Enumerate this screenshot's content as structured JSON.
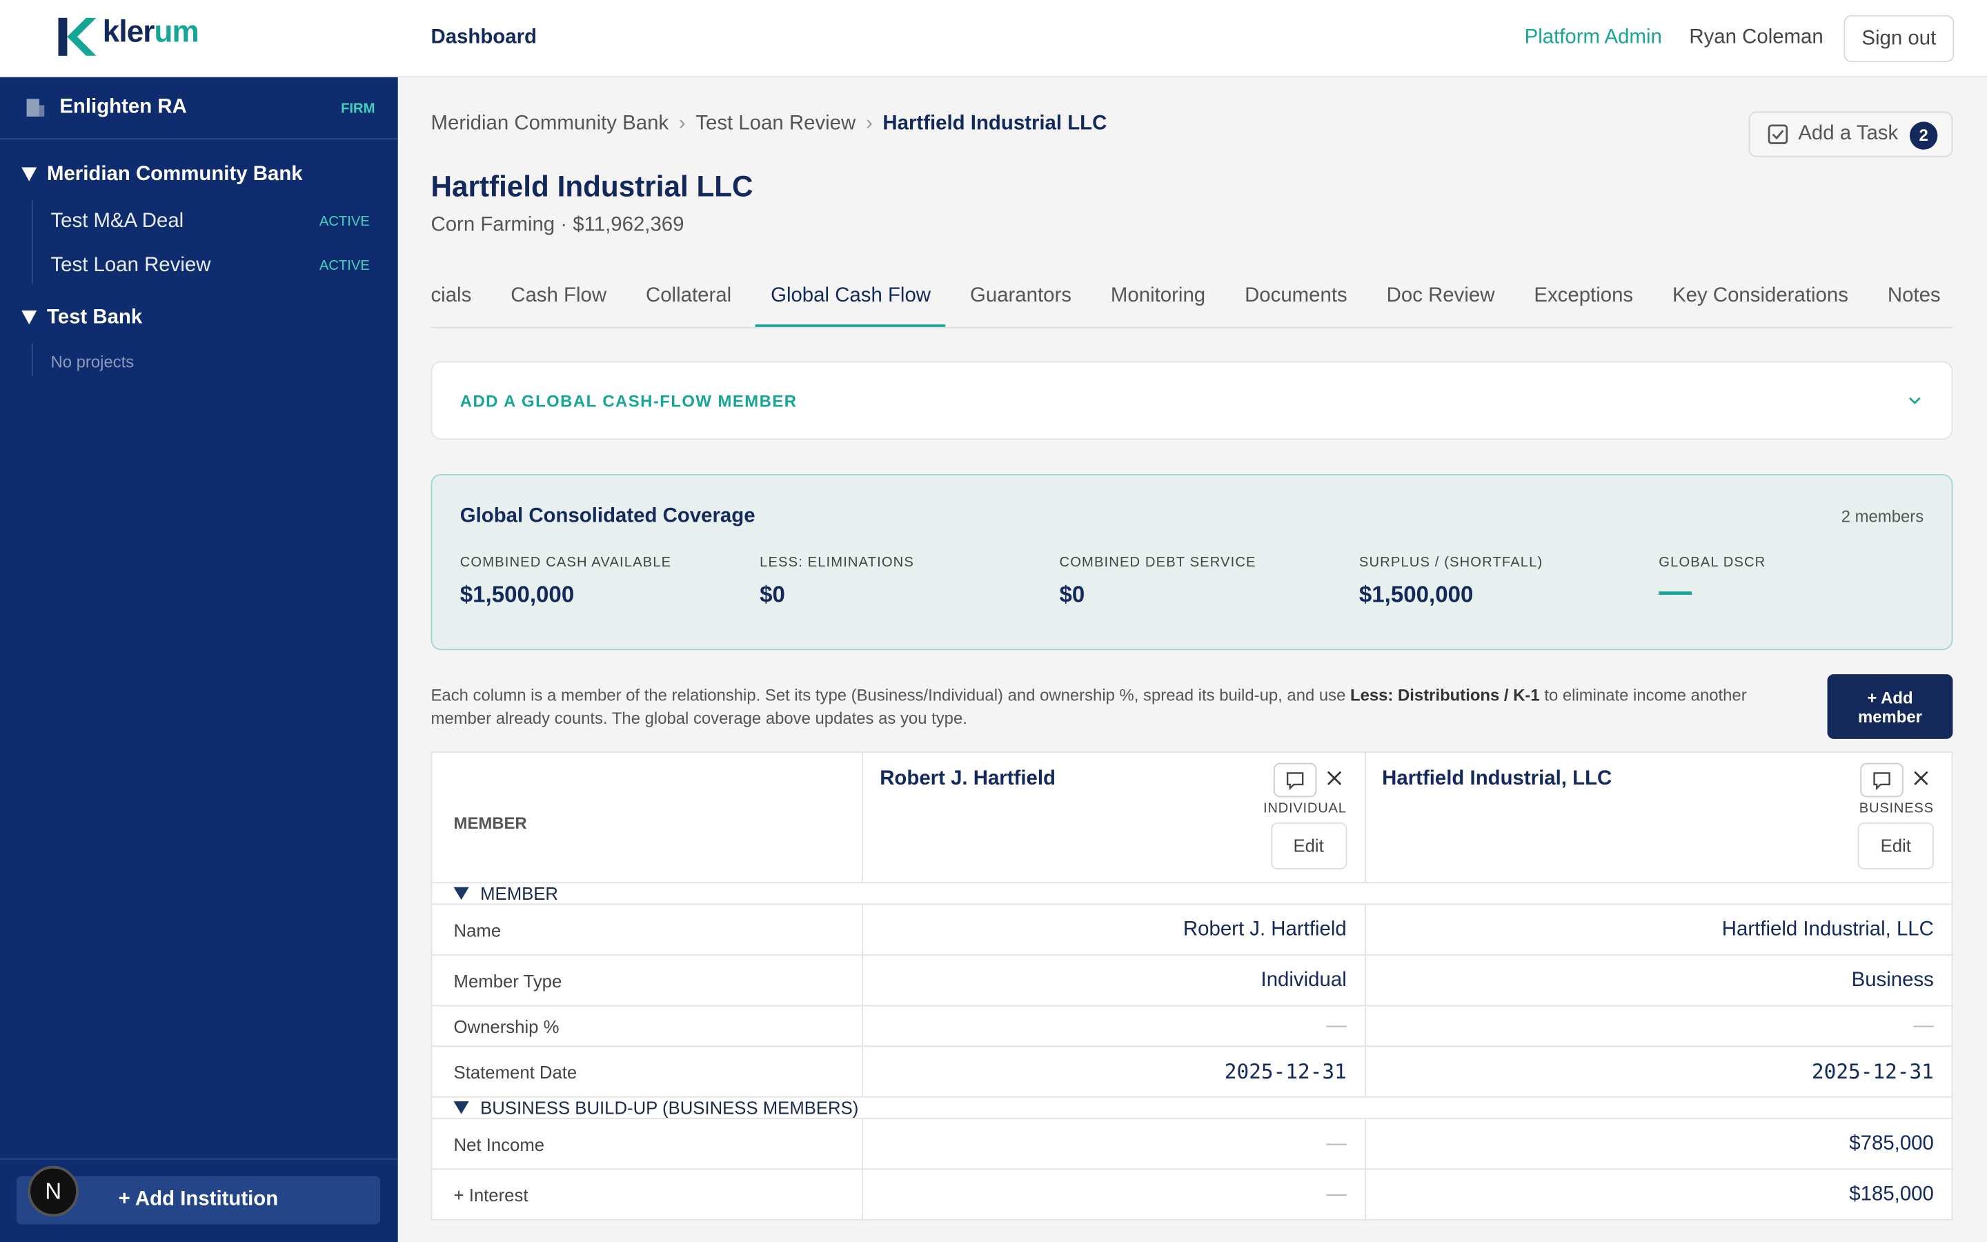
{
  "header": {
    "logo": {
      "part1": "kler",
      "part2": "um"
    },
    "nav": "Dashboard",
    "admin": "Platform Admin",
    "user": "Ryan Coleman",
    "sign_out": "Sign out"
  },
  "sidebar": {
    "firm": "Enlighten RA",
    "firm_badge": "FIRM",
    "institutions": [
      {
        "name": "Meridian Community Bank",
        "projects": [
          {
            "name": "Test M&A Deal",
            "status": "ACTIVE"
          },
          {
            "name": "Test Loan Review",
            "status": "ACTIVE"
          }
        ]
      },
      {
        "name": "Test Bank",
        "empty": "No projects"
      }
    ],
    "add_button": "+ Add Institution",
    "avatar": "N"
  },
  "breadcrumb": [
    "Meridian Community Bank",
    "Test Loan Review",
    "Hartfield Industrial LLC"
  ],
  "task": {
    "label": "Add a Task",
    "count": 2
  },
  "title": "Hartfield Industrial LLC",
  "subtitle": "Corn Farming · $11,962,369",
  "tabs": {
    "items": [
      "cials",
      "Cash Flow",
      "Collateral",
      "Global Cash Flow",
      "Guarantors",
      "Monitoring",
      "Documents",
      "Doc Review",
      "Exceptions",
      "Key Considerations",
      "Notes"
    ],
    "active": 3
  },
  "accordion": "ADD A GLOBAL CASH-FLOW MEMBER",
  "coverage": {
    "title": "Global Consolidated Coverage",
    "members": "2 members",
    "metrics": [
      {
        "label": "COMBINED CASH AVAILABLE",
        "value": "$1,500,000"
      },
      {
        "label": "LESS: ELIMINATIONS",
        "value": "$0"
      },
      {
        "label": "COMBINED DEBT SERVICE",
        "value": "$0"
      },
      {
        "label": "SURPLUS / (SHORTFALL)",
        "value": "$1,500,000"
      },
      {
        "label": "GLOBAL DSCR",
        "value": "—"
      }
    ]
  },
  "note": [
    "Each column is a member of the relationship. Set its type (Business/Individual) and ownership %, spread its build-up, and use ",
    "Less: Distributions / K-1",
    " to eliminate income another member already counts. The global coverage above updates as you type."
  ],
  "add_member": "+ Add member",
  "table": {
    "header": "MEMBER",
    "members": [
      {
        "name": "Robert J. Hartfield",
        "type": "INDIVIDUAL",
        "edit": "Edit"
      },
      {
        "name": "Hartfield Industrial, LLC",
        "type": "BUSINESS",
        "edit": "Edit"
      }
    ],
    "sections": [
      {
        "title": "MEMBER",
        "rows": [
          [
            "Name",
            "Robert J. Hartfield",
            "Hartfield Industrial, LLC"
          ],
          [
            "Member Type",
            "Individual",
            "Business"
          ],
          [
            "Ownership %",
            "—",
            "—"
          ],
          [
            "Statement Date",
            "2025-12-31",
            "2025-12-31"
          ]
        ]
      },
      {
        "title": "BUSINESS BUILD-UP (BUSINESS MEMBERS)",
        "rows": [
          [
            "Net Income",
            "—",
            "$785,000"
          ],
          [
            "+ Interest",
            "—",
            "$185,000"
          ]
        ]
      }
    ]
  }
}
